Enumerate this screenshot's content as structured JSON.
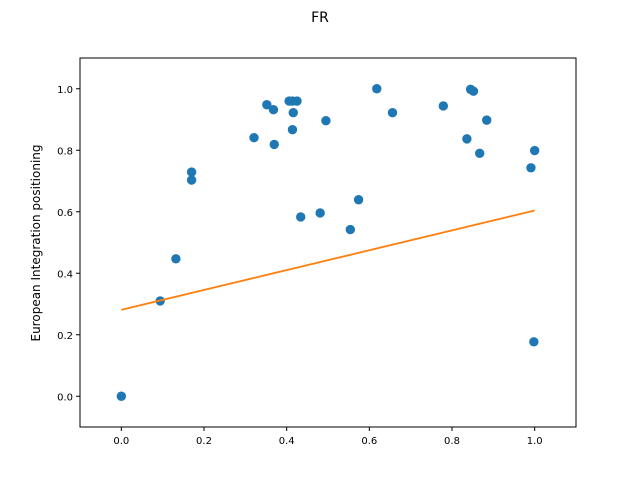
{
  "chart_data": {
    "type": "scatter",
    "title": "FR",
    "xlabel": "",
    "ylabel": "European Integration positioning",
    "xlim": [
      -0.1,
      1.1
    ],
    "ylim": [
      -0.1,
      1.1
    ],
    "xticks": [
      "0.0",
      "0.2",
      "0.4",
      "0.6",
      "0.8",
      "1.0"
    ],
    "yticks": [
      "0.0",
      "0.2",
      "0.4",
      "0.6",
      "0.8",
      "1.0"
    ],
    "grid": false,
    "legend": "none",
    "series": [
      {
        "kind": "scatter",
        "color": "#1f77b4",
        "points": [
          [
            0.0,
            0.0
          ],
          [
            0.094,
            0.31
          ],
          [
            0.132,
            0.447
          ],
          [
            0.17,
            0.729
          ],
          [
            0.17,
            0.703
          ],
          [
            0.321,
            0.841
          ],
          [
            0.352,
            0.948
          ],
          [
            0.368,
            0.932
          ],
          [
            0.37,
            0.819
          ],
          [
            0.406,
            0.96
          ],
          [
            0.414,
            0.96
          ],
          [
            0.416,
            0.922
          ],
          [
            0.414,
            0.867
          ],
          [
            0.425,
            0.96
          ],
          [
            0.434,
            0.583
          ],
          [
            0.481,
            0.596
          ],
          [
            0.495,
            0.896
          ],
          [
            0.554,
            0.542
          ],
          [
            0.574,
            0.639
          ],
          [
            0.618,
            1.0
          ],
          [
            0.656,
            0.922
          ],
          [
            0.779,
            0.944
          ],
          [
            0.836,
            0.837
          ],
          [
            0.845,
            0.998
          ],
          [
            0.852,
            0.992
          ],
          [
            0.867,
            0.79
          ],
          [
            0.884,
            0.898
          ],
          [
            0.991,
            0.743
          ],
          [
            0.998,
            0.177
          ],
          [
            1.0,
            0.799
          ]
        ]
      },
      {
        "kind": "line",
        "color": "#ff7f0e",
        "x": [
          0.0,
          1.0
        ],
        "y": [
          0.281,
          0.604
        ]
      }
    ]
  }
}
